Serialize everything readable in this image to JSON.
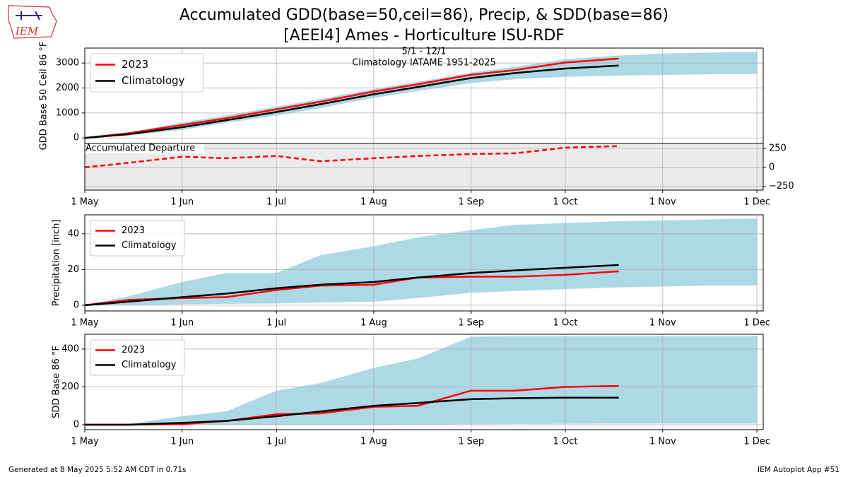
{
  "page": {
    "title_lines": [
      "Accumulated GDD(base=50,ceil=86), Precip, & SDD(base=86)",
      "[AEEI4] Ames - Horticulture ISU-RDF"
    ],
    "logo": "IEM",
    "footer_left": "Generated at 8 May 2025 5:52 AM CDT in 0.71s",
    "footer_right": "IEM Autoplot App #51"
  },
  "chart_data": [
    {
      "type": "line",
      "ylabel": "GDD Base 50 Ceil 86 °F",
      "annotation": [
        "5/1 - 12/1",
        "Climatology IATAME 1951-2025"
      ],
      "x": [
        "1 May",
        "15 May",
        "1 Jun",
        "15 Jun",
        "1 Jul",
        "15 Jul",
        "1 Aug",
        "15 Aug",
        "1 Sep",
        "15 Sep",
        "1 Oct",
        "18 Oct",
        "1 Nov",
        "15 Nov",
        "1 Dec"
      ],
      "xlim": [
        "1 May",
        "3 Dec"
      ],
      "xticks": [
        "1 May",
        "1 Jun",
        "1 Jul",
        "1 Aug",
        "1 Sep",
        "1 Oct",
        "1 Nov",
        "1 Dec"
      ],
      "show_xtick_labels": false,
      "ylim": [
        -220,
        3600
      ],
      "yticks": [
        0,
        1000,
        2000,
        3000
      ],
      "grid": true,
      "legend": "upper left",
      "band": {
        "color": "#add8e6",
        "lower": [
          0,
          100,
          320,
          600,
          900,
          1200,
          1600,
          1880,
          2200,
          2350,
          2450,
          2500,
          2520,
          2550,
          2560
        ],
        "upper": [
          0,
          220,
          620,
          900,
          1250,
          1560,
          1960,
          2250,
          2620,
          2850,
          3150,
          3300,
          3380,
          3420,
          3440
        ]
      },
      "series": [
        {
          "name": "2023",
          "color": "#ff0000",
          "values": [
            0,
            190,
            520,
            790,
            1150,
            1450,
            1860,
            2150,
            2530,
            2720,
            3020,
            3180,
            null,
            null,
            null
          ]
        },
        {
          "name": "Climatology",
          "color": "#000000",
          "values": [
            0,
            150,
            430,
            710,
            1040,
            1350,
            1750,
            2040,
            2400,
            2600,
            2780,
            2900,
            null,
            null,
            null
          ]
        }
      ]
    },
    {
      "type": "line",
      "annotation": [
        "Accumulated Departure"
      ],
      "background": "#ebebeb",
      "yaxis_side": "right",
      "linestyle": "dashed",
      "color": "#ff0000",
      "x": [
        "1 May",
        "15 May",
        "1 Jun",
        "15 Jun",
        "1 Jul",
        "15 Jul",
        "1 Aug",
        "15 Aug",
        "1 Sep",
        "15 Sep",
        "1 Oct",
        "18 Oct"
      ],
      "values": [
        0,
        60,
        140,
        120,
        150,
        80,
        120,
        150,
        175,
        185,
        260,
        280
      ],
      "xlim": [
        "1 May",
        "3 Dec"
      ],
      "xticks": [
        "1 May",
        "1 Jun",
        "1 Jul",
        "1 Aug",
        "1 Sep",
        "1 Oct",
        "1 Nov",
        "1 Dec"
      ],
      "show_xtick_labels": true,
      "ylim": [
        -300,
        315
      ],
      "yticks": [
        {
          "value": -250,
          "label": "−250"
        },
        0,
        250
      ],
      "grid": true
    },
    {
      "type": "line",
      "ylabel": "Precipitation [inch]",
      "x": [
        "1 May",
        "15 May",
        "1 Jun",
        "15 Jun",
        "1 Jul",
        "15 Jul",
        "1 Aug",
        "15 Aug",
        "1 Sep",
        "15 Sep",
        "1 Oct",
        "18 Oct",
        "1 Nov",
        "15 Nov",
        "1 Dec"
      ],
      "xlim": [
        "1 May",
        "3 Dec"
      ],
      "xticks": [
        "1 May",
        "1 Jun",
        "1 Jul",
        "1 Aug",
        "1 Sep",
        "1 Oct",
        "1 Nov",
        "1 Dec"
      ],
      "show_xtick_labels": true,
      "ylim": [
        -3.2,
        50.6
      ],
      "yticks": [
        0,
        20,
        40
      ],
      "grid": true,
      "legend": "upper left",
      "band": {
        "color": "#add8e6",
        "lower": [
          0,
          0,
          0.5,
          0.8,
          1,
          1.5,
          2,
          4,
          7,
          8,
          9,
          10,
          10.5,
          11,
          11
        ],
        "upper": [
          0,
          5,
          13,
          18,
          18,
          28,
          33,
          38,
          42,
          45,
          46,
          47,
          47.5,
          48,
          48.5
        ]
      },
      "series": [
        {
          "name": "2023",
          "color": "#ff0000",
          "values": [
            0,
            3,
            4,
            4.5,
            8.5,
            11,
            11.5,
            15.5,
            16,
            16,
            17,
            19,
            null,
            null,
            null
          ]
        },
        {
          "name": "Climatology",
          "color": "#000000",
          "values": [
            0,
            2,
            4.5,
            6.5,
            9.5,
            11.5,
            13,
            15.5,
            18,
            19.5,
            21,
            22.5,
            null,
            null,
            null
          ]
        }
      ]
    },
    {
      "type": "line",
      "ylabel": "SDD Base 86 °F",
      "x": [
        "1 May",
        "15 May",
        "1 Jun",
        "15 Jun",
        "1 Jul",
        "15 Jul",
        "1 Aug",
        "15 Aug",
        "1 Sep",
        "15 Sep",
        "1 Oct",
        "18 Oct",
        "1 Nov",
        "15 Nov",
        "1 Dec"
      ],
      "xlim": [
        "1 May",
        "3 Dec"
      ],
      "xticks": [
        "1 May",
        "1 Jun",
        "1 Jul",
        "1 Aug",
        "1 Sep",
        "1 Oct",
        "1 Nov",
        "1 Dec"
      ],
      "show_xtick_labels": true,
      "ylim": [
        -26,
        478
      ],
      "yticks": [
        0,
        200,
        400
      ],
      "grid": true,
      "legend": "upper left",
      "band": {
        "color": "#add8e6",
        "lower": [
          0,
          0,
          0,
          0,
          0,
          0,
          0,
          1,
          3,
          4,
          5,
          6,
          6,
          6,
          6
        ],
        "upper": [
          0,
          5,
          45,
          70,
          180,
          220,
          300,
          350,
          465,
          468,
          468,
          468,
          468,
          468,
          468
        ]
      },
      "series": [
        {
          "name": "2023",
          "color": "#ff0000",
          "values": [
            0,
            0,
            3,
            20,
            55,
            60,
            95,
            100,
            180,
            180,
            200,
            205,
            null,
            null,
            null
          ]
        },
        {
          "name": "Climatology",
          "color": "#000000",
          "values": [
            0,
            0,
            10,
            20,
            45,
            70,
            100,
            115,
            135,
            140,
            143,
            143,
            null,
            null,
            null
          ]
        }
      ]
    }
  ]
}
